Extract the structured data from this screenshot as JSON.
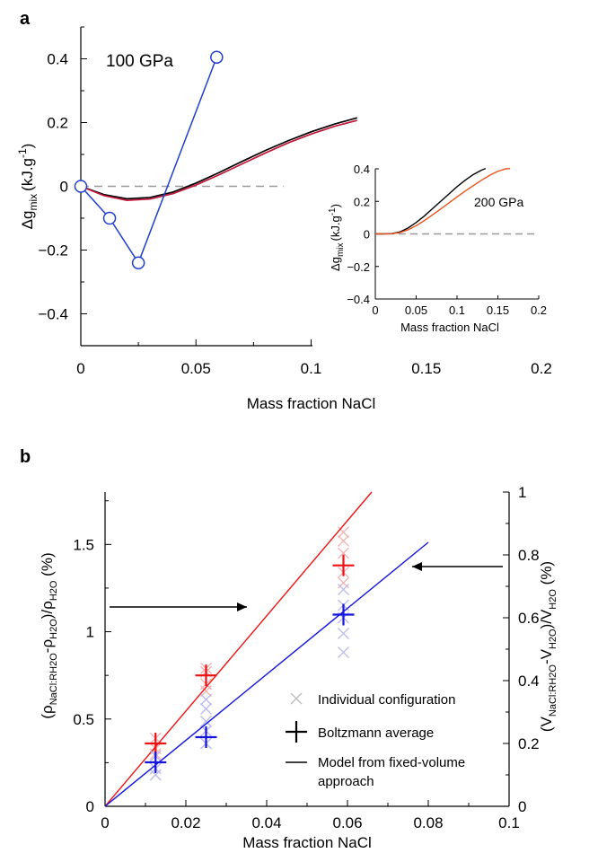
{
  "panels": {
    "a_label": "a",
    "b_label": "b"
  },
  "chart_data": [
    {
      "id": "a_main",
      "type": "line",
      "annotation": "100 GPa",
      "xlabel": "Mass fraction NaCl",
      "ylabel_main": "Δg",
      "ylabel_sub": "mix",
      "ylabel_unit": "(kJ.g",
      "ylabel_exp": "-1",
      "ylabel_close": ")",
      "xlim": [
        0,
        0.2
      ],
      "ylim": [
        -0.5,
        0.5
      ],
      "xticks": [
        0,
        0.05,
        0.1,
        0.15,
        0.2
      ],
      "xtick_labels": [
        "0",
        "0.05",
        "0.1",
        "0.15",
        "0.2"
      ],
      "yticks": [
        -0.4,
        -0.2,
        0,
        0.2,
        0.4
      ],
      "ytick_labels": [
        "−0.4",
        "−0.2",
        "0",
        "0.2",
        "0.4"
      ],
      "colors": {
        "black": "#000000",
        "red": "#c0193a",
        "blue": "#1f3fcf",
        "dash": "#999999"
      },
      "series": [
        {
          "color": "black",
          "marker": "none",
          "x": [
            0,
            0.01,
            0.02,
            0.03,
            0.04,
            0.05,
            0.06,
            0.07,
            0.08,
            0.09,
            0.1,
            0.11,
            0.12
          ],
          "y": [
            0,
            -0.026,
            -0.039,
            -0.035,
            -0.018,
            0.01,
            0.043,
            0.078,
            0.112,
            0.143,
            0.171,
            0.195,
            0.215
          ]
        },
        {
          "color": "red",
          "marker": "none",
          "x": [
            0,
            0.01,
            0.02,
            0.03,
            0.04,
            0.05,
            0.06,
            0.07,
            0.08,
            0.09,
            0.1,
            0.11,
            0.12
          ],
          "y": [
            0,
            -0.029,
            -0.044,
            -0.04,
            -0.023,
            0.004,
            0.036,
            0.07,
            0.104,
            0.136,
            0.164,
            0.188,
            0.207
          ]
        },
        {
          "color": "blue",
          "marker": "circle",
          "x": [
            0,
            0.0125,
            0.025,
            0.059
          ],
          "y": [
            0,
            -0.1,
            -0.24,
            0.405
          ]
        }
      ],
      "dashed_zero": {
        "x": [
          0,
          0.088
        ],
        "y": 0
      }
    },
    {
      "id": "a_inset",
      "type": "line",
      "annotation": "200 GPa",
      "xlabel": "Mass fraction NaCl",
      "ylabel_main": "Δg",
      "ylabel_sub": "mix",
      "ylabel_unit": "(kJ.g",
      "ylabel_exp": "-1",
      "ylabel_close": ")",
      "xlim": [
        0,
        0.2
      ],
      "ylim": [
        -0.4,
        0.4
      ],
      "xticks": [
        0,
        0.05,
        0.1,
        0.15,
        0.2
      ],
      "xtick_labels": [
        "0",
        "0.05",
        "0.1",
        "0.15",
        "0.2"
      ],
      "yticks": [
        -0.4,
        -0.2,
        0,
        0.2,
        0.4
      ],
      "ytick_labels": [
        "−0.4",
        "−0.2",
        "0",
        "0.2",
        "0.4"
      ],
      "series": [
        {
          "color": "black",
          "x": [
            0,
            0.01,
            0.02,
            0.03,
            0.04,
            0.05,
            0.06,
            0.07,
            0.08,
            0.09,
            0.1,
            0.11,
            0.12,
            0.13,
            0.135
          ],
          "y": [
            0,
            0,
            0.002,
            0.012,
            0.036,
            0.07,
            0.11,
            0.155,
            0.2,
            0.245,
            0.29,
            0.33,
            0.365,
            0.392,
            0.402
          ]
        },
        {
          "color": "orange",
          "x": [
            0,
            0.01,
            0.02,
            0.03,
            0.04,
            0.05,
            0.06,
            0.07,
            0.08,
            0.09,
            0.1,
            0.11,
            0.12,
            0.13,
            0.14,
            0.15,
            0.16,
            0.165
          ],
          "y": [
            0,
            0,
            0.001,
            0.008,
            0.025,
            0.05,
            0.082,
            0.117,
            0.153,
            0.19,
            0.227,
            0.263,
            0.297,
            0.33,
            0.36,
            0.385,
            0.4,
            0.402
          ]
        }
      ],
      "colors": {
        "black": "#000000",
        "orange": "#e8541b",
        "dash": "#999999"
      },
      "dashed_zero": {
        "x": [
          0,
          0.2
        ],
        "y": 0
      }
    },
    {
      "id": "b",
      "type": "scatter",
      "xlabel": "Mass fraction NaCl",
      "xlim": [
        0,
        0.1
      ],
      "ylim_left": [
        0,
        1.8
      ],
      "ylim_right": [
        0,
        1
      ],
      "xticks": [
        0,
        0.02,
        0.04,
        0.06,
        0.08,
        0.1
      ],
      "xtick_labels": [
        "0",
        "0.02",
        "0.04",
        "0.06",
        "0.08",
        "0.1"
      ],
      "yticks_left": [
        0,
        0.5,
        1,
        1.5
      ],
      "ytick_labels_left": [
        "0",
        "0.5",
        "1",
        "1.5"
      ],
      "yticks_right": [
        0,
        0.2,
        0.4,
        0.6,
        0.8,
        1
      ],
      "ytick_labels_right": [
        "0",
        "0.2",
        "0.4",
        "0.6",
        "0.8",
        "1"
      ],
      "ylabel_left": {
        "p1": "(ρ",
        "s1": "NaCl:RH2O",
        "p2": "-ρ",
        "s2": "H2O",
        "p3": ")/ρ",
        "s3": "H2O",
        "p4": " (%)"
      },
      "ylabel_right": {
        "p1": "(V",
        "s1": "NaCl:RH2O",
        "p2": "-V",
        "s2": "H2O",
        "p3": ")/V",
        "s3": "H2O",
        "p4": " (%)"
      },
      "colors": {
        "red": "#ee1111",
        "blue": "#1515dd",
        "red_light": "#f4b0b0",
        "blue_light": "#b9b9ec",
        "black": "#000000"
      },
      "series": [
        {
          "axis": "left",
          "color": "red",
          "boltzmann": {
            "x": [
              0.0125,
              0.025,
              0.059
            ],
            "y": [
              0.36,
              0.75,
              1.38
            ]
          },
          "individual": {
            "x": [
              0.0125,
              0.0125,
              0.0125,
              0.025,
              0.025,
              0.025,
              0.025,
              0.059,
              0.059,
              0.059,
              0.059,
              0.059
            ],
            "y": [
              0.3,
              0.33,
              0.39,
              0.66,
              0.7,
              0.77,
              0.79,
              1.28,
              1.34,
              1.45,
              1.52,
              1.57
            ]
          },
          "model_line": {
            "x": [
              0,
              0.066
            ],
            "y": [
              0,
              1.8
            ]
          }
        },
        {
          "axis": "right",
          "color": "blue",
          "boltzmann": {
            "x": [
              0.0125,
              0.025,
              0.059
            ],
            "y": [
              0.14,
              0.22,
              0.61
            ]
          },
          "individual": {
            "x": [
              0.0125,
              0.0125,
              0.0125,
              0.025,
              0.025,
              0.025,
              0.025,
              0.025,
              0.059,
              0.059,
              0.059,
              0.059,
              0.059
            ],
            "y": [
              0.1,
              0.12,
              0.16,
              0.2,
              0.24,
              0.27,
              0.31,
              0.34,
              0.49,
              0.55,
              0.6,
              0.64,
              0.69
            ]
          },
          "model_line": {
            "x": [
              0,
              0.08
            ],
            "y": [
              0,
              0.84
            ]
          }
        }
      ],
      "arrows": [
        {
          "direction": "right",
          "points_to": "left axis series (red)"
        },
        {
          "direction": "left",
          "points_to": "right axis series (blue)"
        }
      ],
      "legend": {
        "position": "bottom-right",
        "items": [
          {
            "marker": "x-light",
            "label": "Individual configuration"
          },
          {
            "marker": "plus",
            "label": "Boltzmann average"
          },
          {
            "marker": "line",
            "label": "Model from fixed-volume",
            "label2": "approach"
          }
        ]
      }
    }
  ]
}
